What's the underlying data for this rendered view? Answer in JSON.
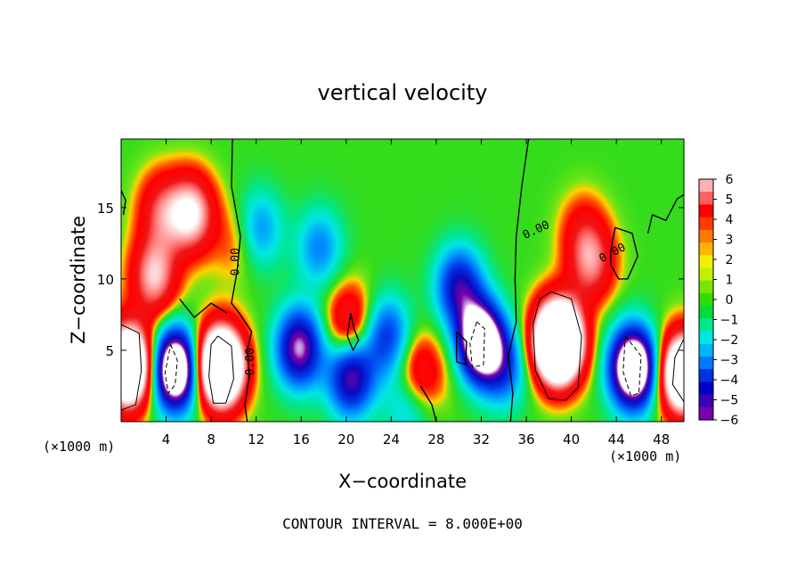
{
  "chart_data": {
    "type": "heatmap",
    "title": "vertical velocity",
    "xlabel": "X−coordinate",
    "ylabel": "Z−coordinate",
    "x_unit_left": "(×1000 m)",
    "x_unit_right": "(×1000 m)",
    "footer": "CONTOUR INTERVAL = 8.000E+00",
    "xlim": [
      0,
      50
    ],
    "ylim": [
      0,
      19.8
    ],
    "xticks": [
      4,
      8,
      12,
      16,
      20,
      24,
      28,
      32,
      36,
      40,
      44,
      48
    ],
    "yticks": [
      5,
      10,
      15
    ],
    "contour_label": "0.00",
    "colorbar": {
      "ticks": [
        "6",
        "5",
        "4",
        "3",
        "2",
        "1",
        "0",
        "−1",
        "−2",
        "−3",
        "−4",
        "−5",
        "−6"
      ],
      "range": [
        -6,
        6
      ]
    },
    "updrafts": [
      {
        "x": 0.6,
        "z": 3.9,
        "w": 10
      },
      {
        "x": 8.8,
        "z": 3.9,
        "w": 11
      },
      {
        "x": 38.8,
        "z": 5.6,
        "w": 13
      },
      {
        "x": 49.9,
        "z": 3.4,
        "w": 9
      },
      {
        "x": 6.2,
        "z": 14.6,
        "w": 4.6
      },
      {
        "x": 2.9,
        "z": 10.2,
        "w": 4
      },
      {
        "x": 3.5,
        "z": 14.8,
        "w": 2.6
      },
      {
        "x": 20.2,
        "z": 6.9,
        "w": 2.8
      },
      {
        "x": 26.4,
        "z": 3.2,
        "w": 3
      },
      {
        "x": 41.8,
        "z": 11.1,
        "w": 3
      },
      {
        "x": 41.0,
        "z": 13.3,
        "w": 1.6
      },
      {
        "x": 10.2,
        "z": 12.6,
        "w": 1.2
      },
      {
        "x": 30.5,
        "z": 4.8,
        "w": 1.0
      }
    ],
    "downdrafts": [
      {
        "x": 4.8,
        "z": 3.7,
        "w": 8.5
      },
      {
        "x": 31.8,
        "z": 5.6,
        "w": 8.5
      },
      {
        "x": 45.5,
        "z": 3.8,
        "w": 8.5
      },
      {
        "x": 30.0,
        "z": 9.5,
        "w": 4
      },
      {
        "x": 15.8,
        "z": 5.2,
        "w": 5.2
      },
      {
        "x": 20.4,
        "z": 3.2,
        "w": 4.8
      },
      {
        "x": 23.6,
        "z": 6.0,
        "w": 3.2
      },
      {
        "x": 25.6,
        "z": 1.4,
        "w": 2.2
      },
      {
        "x": 12.2,
        "z": 13.5,
        "w": 2.2
      },
      {
        "x": 17.6,
        "z": 12.2,
        "w": 2.2
      },
      {
        "x": 34.0,
        "z": 3.8,
        "w": 2.6
      }
    ],
    "zero_contours": [
      [
        [
          9.9,
          19.8
        ],
        [
          9.8,
          16.5
        ],
        [
          10.6,
          13.0
        ],
        [
          10.3,
          10.5
        ],
        [
          9.8,
          8.3
        ],
        [
          10.5,
          7.6
        ],
        [
          11.6,
          6.3
        ],
        [
          11.2,
          5.0
        ],
        [
          11.4,
          3.2
        ],
        [
          11.0,
          1.2
        ],
        [
          11.2,
          0
        ]
      ],
      [
        [
          36.2,
          19.8
        ],
        [
          35.6,
          16.5
        ],
        [
          35.1,
          13.0
        ],
        [
          35.0,
          10.0
        ],
        [
          35.1,
          7.0
        ],
        [
          34.4,
          4.6
        ],
        [
          34.8,
          2.0
        ],
        [
          34.6,
          0
        ]
      ],
      [
        [
          43.5,
          12.0
        ],
        [
          43.9,
          13.6
        ],
        [
          45.4,
          13.2
        ],
        [
          45.9,
          11.6
        ],
        [
          45.0,
          10.0
        ],
        [
          44.2,
          10.0
        ],
        [
          43.5,
          11.0
        ],
        [
          43.5,
          12.0
        ]
      ],
      [
        [
          46.8,
          13.2
        ],
        [
          47.2,
          14.5
        ],
        [
          48.4,
          14.1
        ],
        [
          49.4,
          15.6
        ],
        [
          50.0,
          15.9
        ]
      ],
      [
        [
          0,
          16.2
        ],
        [
          0.4,
          15.5
        ],
        [
          0.2,
          14.5
        ]
      ],
      [
        [
          5.2,
          8.6
        ],
        [
          6.5,
          7.3
        ],
        [
          8.0,
          8.3
        ],
        [
          9.4,
          7.6
        ]
      ],
      [
        [
          20.4,
          7.6
        ],
        [
          20.7,
          6.5
        ],
        [
          21.1,
          5.7
        ],
        [
          20.6,
          5.0
        ],
        [
          20.1,
          6.0
        ],
        [
          20.4,
          7.6
        ]
      ],
      [
        [
          29.8,
          6.3
        ],
        [
          30.7,
          5.6
        ],
        [
          30.6,
          4.0
        ],
        [
          29.8,
          4.2
        ],
        [
          29.8,
          6.3
        ]
      ],
      [
        [
          26.6,
          2.5
        ],
        [
          27.6,
          1.2
        ],
        [
          28.0,
          0
        ]
      ]
    ],
    "closed_contours": [
      [
        [
          0,
          6.8
        ],
        [
          1.6,
          6.2
        ],
        [
          1.8,
          3.6
        ],
        [
          1.3,
          1.2
        ],
        [
          0,
          0.8
        ]
      ],
      [
        [
          8.6,
          6.0
        ],
        [
          9.8,
          5.3
        ],
        [
          10.0,
          3.0
        ],
        [
          9.3,
          1.3
        ],
        [
          8.2,
          1.3
        ],
        [
          7.8,
          3.2
        ],
        [
          8.0,
          5.4
        ],
        [
          8.6,
          6.0
        ]
      ],
      [
        [
          38.2,
          9.1
        ],
        [
          40.0,
          8.6
        ],
        [
          40.9,
          6.0
        ],
        [
          40.6,
          2.4
        ],
        [
          39.5,
          1.5
        ],
        [
          38.0,
          1.6
        ],
        [
          36.8,
          3.6
        ],
        [
          36.6,
          6.8
        ],
        [
          37.2,
          8.6
        ],
        [
          38.2,
          9.1
        ]
      ],
      [
        [
          50.0,
          5.8
        ],
        [
          49.2,
          4.5
        ],
        [
          49.0,
          2.6
        ],
        [
          50.0,
          1.4
        ]
      ]
    ],
    "dashed_contours": [
      [
        [
          4.4,
          5.4
        ],
        [
          5.0,
          4.3
        ],
        [
          4.8,
          2.6
        ],
        [
          4.2,
          2.0
        ],
        [
          3.9,
          3.4
        ],
        [
          4.4,
          5.4
        ]
      ],
      [
        [
          31.6,
          7.0
        ],
        [
          32.3,
          6.5
        ],
        [
          32.2,
          4.0
        ],
        [
          31.2,
          3.8
        ],
        [
          31.0,
          5.5
        ],
        [
          31.6,
          7.0
        ]
      ],
      [
        [
          44.8,
          6.0
        ],
        [
          46.2,
          4.6
        ],
        [
          46.0,
          2.0
        ],
        [
          45.3,
          1.8
        ],
        [
          44.6,
          3.5
        ],
        [
          44.8,
          6.0
        ]
      ]
    ]
  }
}
